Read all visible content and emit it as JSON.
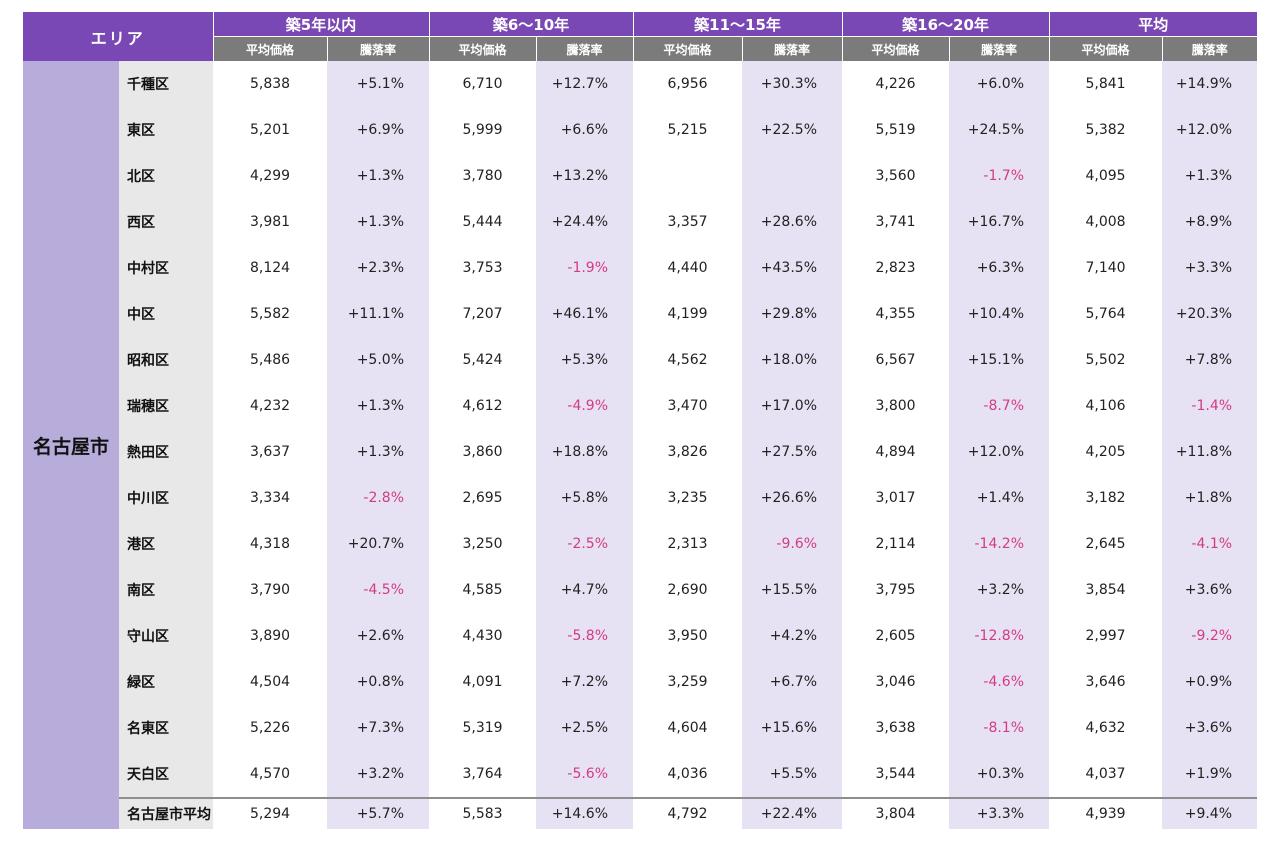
{
  "area_label": "エリア",
  "city": "名古屋市",
  "groups": [
    "築5年以内",
    "築6～10年",
    "築11～15年",
    "築16～20年",
    "平均"
  ],
  "subheaders": {
    "price": "平均価格",
    "rate": "騰落率"
  },
  "rows": [
    {
      "ward": "千種区",
      "cells": [
        "5,838",
        "+5.1%",
        "6,710",
        "+12.7%",
        "6,956",
        "+30.3%",
        "4,226",
        "+6.0%",
        "5,841",
        "+14.9%"
      ]
    },
    {
      "ward": "東区",
      "cells": [
        "5,201",
        "+6.9%",
        "5,999",
        "+6.6%",
        "5,215",
        "+22.5%",
        "5,519",
        "+24.5%",
        "5,382",
        "+12.0%"
      ]
    },
    {
      "ward": "北区",
      "cells": [
        "4,299",
        "+1.3%",
        "3,780",
        "+13.2%",
        "",
        "",
        "3,560",
        "-1.7%",
        "4,095",
        "+1.3%"
      ]
    },
    {
      "ward": "西区",
      "cells": [
        "3,981",
        "+1.3%",
        "5,444",
        "+24.4%",
        "3,357",
        "+28.6%",
        "3,741",
        "+16.7%",
        "4,008",
        "+8.9%"
      ]
    },
    {
      "ward": "中村区",
      "cells": [
        "8,124",
        "+2.3%",
        "3,753",
        "-1.9%",
        "4,440",
        "+43.5%",
        "2,823",
        "+6.3%",
        "7,140",
        "+3.3%"
      ]
    },
    {
      "ward": "中区",
      "cells": [
        "5,582",
        "+11.1%",
        "7,207",
        "+46.1%",
        "4,199",
        "+29.8%",
        "4,355",
        "+10.4%",
        "5,764",
        "+20.3%"
      ]
    },
    {
      "ward": "昭和区",
      "cells": [
        "5,486",
        "+5.0%",
        "5,424",
        "+5.3%",
        "4,562",
        "+18.0%",
        "6,567",
        "+15.1%",
        "5,502",
        "+7.8%"
      ]
    },
    {
      "ward": "瑞穂区",
      "cells": [
        "4,232",
        "+1.3%",
        "4,612",
        "-4.9%",
        "3,470",
        "+17.0%",
        "3,800",
        "-8.7%",
        "4,106",
        "-1.4%"
      ]
    },
    {
      "ward": "熱田区",
      "cells": [
        "3,637",
        "+1.3%",
        "3,860",
        "+18.8%",
        "3,826",
        "+27.5%",
        "4,894",
        "+12.0%",
        "4,205",
        "+11.8%"
      ]
    },
    {
      "ward": "中川区",
      "cells": [
        "3,334",
        "-2.8%",
        "2,695",
        "+5.8%",
        "3,235",
        "+26.6%",
        "3,017",
        "+1.4%",
        "3,182",
        "+1.8%"
      ]
    },
    {
      "ward": "港区",
      "cells": [
        "4,318",
        "+20.7%",
        "3,250",
        "-2.5%",
        "2,313",
        "-9.6%",
        "2,114",
        "-14.2%",
        "2,645",
        "-4.1%"
      ]
    },
    {
      "ward": "南区",
      "cells": [
        "3,790",
        "-4.5%",
        "4,585",
        "+4.7%",
        "2,690",
        "+15.5%",
        "3,795",
        "+3.2%",
        "3,854",
        "+3.6%"
      ]
    },
    {
      "ward": "守山区",
      "cells": [
        "3,890",
        "+2.6%",
        "4,430",
        "-5.8%",
        "3,950",
        "+4.2%",
        "2,605",
        "-12.8%",
        "2,997",
        "-9.2%"
      ]
    },
    {
      "ward": "緑区",
      "cells": [
        "4,504",
        "+0.8%",
        "4,091",
        "+7.2%",
        "3,259",
        "+6.7%",
        "3,046",
        "-4.6%",
        "3,646",
        "+0.9%"
      ]
    },
    {
      "ward": "名東区",
      "cells": [
        "5,226",
        "+7.3%",
        "5,319",
        "+2.5%",
        "4,604",
        "+15.6%",
        "3,638",
        "-8.1%",
        "4,632",
        "+3.6%"
      ]
    },
    {
      "ward": "天白区",
      "cells": [
        "4,570",
        "+3.2%",
        "3,764",
        "-5.6%",
        "4,036",
        "+5.5%",
        "3,544",
        "+0.3%",
        "4,037",
        "+1.9%"
      ]
    }
  ],
  "average": {
    "ward": "名古屋市平均",
    "cells": [
      "5,294",
      "+5.7%",
      "5,583",
      "+14.6%",
      "4,792",
      "+22.4%",
      "3,804",
      "+3.3%",
      "4,939",
      "+9.4%"
    ]
  },
  "colors": {
    "header": "#7a48b4",
    "subheader": "#7b7b7b",
    "city_cell": "#b8acdb",
    "ward_cell": "#e8e8e8",
    "rate_column": "#e7e2f3",
    "negative": "#d43a86"
  }
}
